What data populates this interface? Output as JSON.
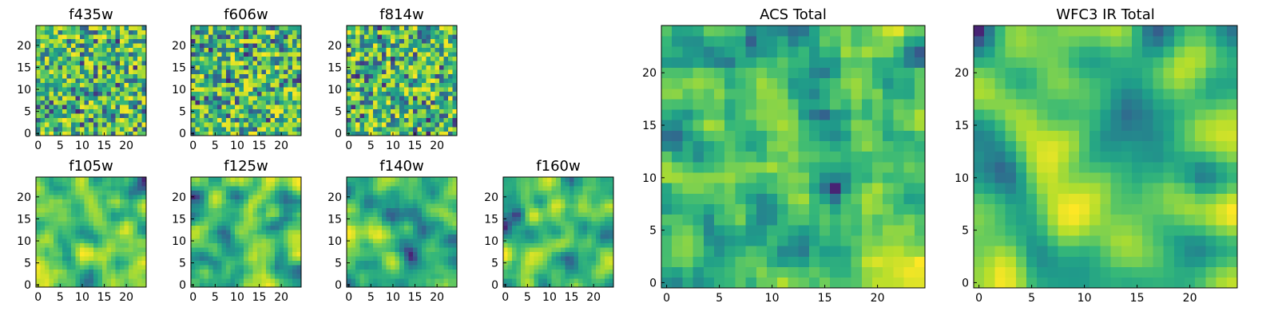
{
  "chart_data": [
    {
      "type": "heatmap",
      "title": "f435w",
      "grid_size": 25,
      "xlim": [
        0,
        24
      ],
      "ylim": [
        0,
        24
      ],
      "xticks": [
        "0",
        "5",
        "10",
        "15",
        "20"
      ],
      "yticks": [
        "0",
        "5",
        "10",
        "15",
        "20"
      ],
      "colormap": "viridis",
      "seed": 435,
      "smooth": 0
    },
    {
      "type": "heatmap",
      "title": "f606w",
      "grid_size": 25,
      "xlim": [
        0,
        24
      ],
      "ylim": [
        0,
        24
      ],
      "xticks": [
        "0",
        "5",
        "10",
        "15",
        "20"
      ],
      "yticks": [
        "0",
        "5",
        "10",
        "15",
        "20"
      ],
      "colormap": "viridis",
      "seed": 606,
      "smooth": 0
    },
    {
      "type": "heatmap",
      "title": "f814w",
      "grid_size": 25,
      "xlim": [
        0,
        24
      ],
      "ylim": [
        0,
        24
      ],
      "xticks": [
        "0",
        "5",
        "10",
        "15",
        "20"
      ],
      "yticks": [
        "0",
        "5",
        "10",
        "15",
        "20"
      ],
      "colormap": "viridis",
      "seed": 814,
      "smooth": 0
    },
    {
      "type": "heatmap",
      "title": "f105w",
      "grid_size": 25,
      "xlim": [
        0,
        24
      ],
      "ylim": [
        0,
        24
      ],
      "xticks": [
        "0",
        "5",
        "10",
        "15",
        "20"
      ],
      "yticks": [
        "0",
        "5",
        "10",
        "15",
        "20"
      ],
      "colormap": "viridis",
      "seed": 105,
      "smooth": 2
    },
    {
      "type": "heatmap",
      "title": "f125w",
      "grid_size": 25,
      "xlim": [
        0,
        24
      ],
      "ylim": [
        0,
        24
      ],
      "xticks": [
        "0",
        "5",
        "10",
        "15",
        "20"
      ],
      "yticks": [
        "0",
        "5",
        "10",
        "15",
        "20"
      ],
      "colormap": "viridis",
      "seed": 125,
      "smooth": 2
    },
    {
      "type": "heatmap",
      "title": "f140w",
      "grid_size": 25,
      "xlim": [
        0,
        24
      ],
      "ylim": [
        0,
        24
      ],
      "xticks": [
        "0",
        "5",
        "10",
        "15",
        "20"
      ],
      "yticks": [
        "0",
        "5",
        "10",
        "15",
        "20"
      ],
      "colormap": "viridis",
      "seed": 140,
      "smooth": 2
    },
    {
      "type": "heatmap",
      "title": "f160w",
      "grid_size": 25,
      "xlim": [
        0,
        24
      ],
      "ylim": [
        0,
        24
      ],
      "xticks": [
        "0",
        "5",
        "10",
        "15",
        "20"
      ],
      "yticks": [
        "0",
        "5",
        "10",
        "15",
        "20"
      ],
      "colormap": "viridis",
      "seed": 160,
      "smooth": 2
    },
    {
      "type": "heatmap",
      "title": "ACS Total",
      "grid_size": 25,
      "xlim": [
        0,
        24
      ],
      "ylim": [
        0,
        24
      ],
      "xticks": [
        "0",
        "5",
        "10",
        "15",
        "20"
      ],
      "yticks": [
        "0",
        "5",
        "10",
        "15",
        "20"
      ],
      "colormap": "viridis",
      "seed": 999,
      "smooth": 1
    },
    {
      "type": "heatmap",
      "title": "WFC3 IR Total",
      "grid_size": 25,
      "xlim": [
        0,
        24
      ],
      "ylim": [
        0,
        24
      ],
      "xticks": [
        "0",
        "5",
        "10",
        "15",
        "20"
      ],
      "yticks": [
        "0",
        "5",
        "10",
        "15",
        "20"
      ],
      "colormap": "viridis",
      "seed": 321,
      "smooth": 3
    }
  ]
}
